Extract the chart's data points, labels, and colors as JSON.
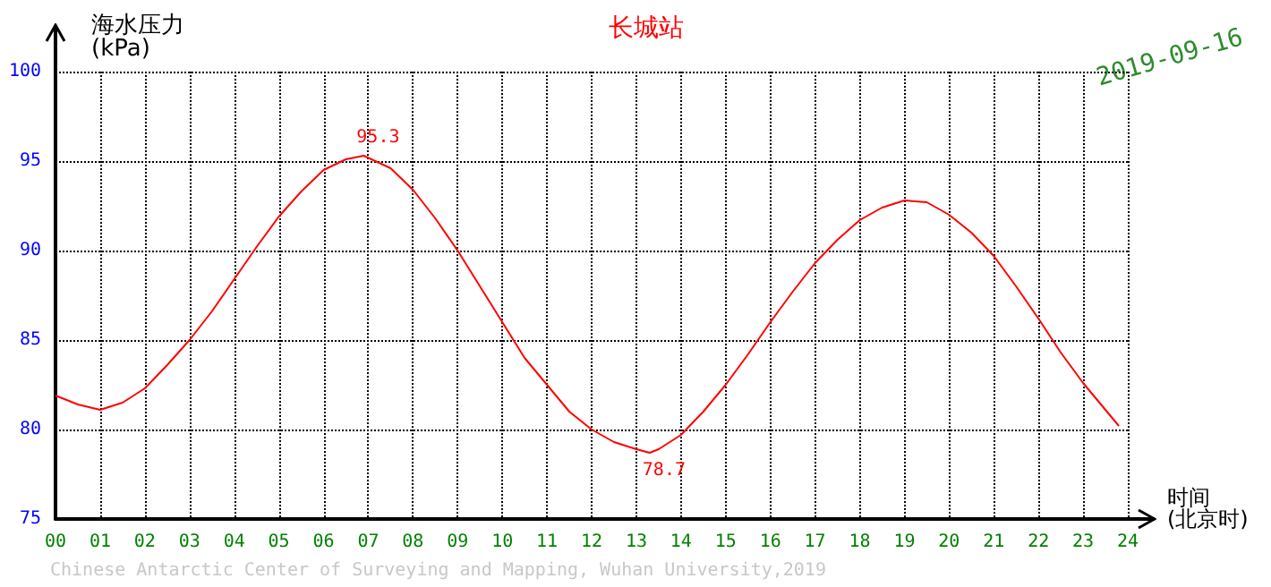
{
  "chart_data": {
    "type": "line",
    "title": "长城站",
    "ylabel": "海水压力\n(kPa)",
    "xlabel": "时间\n(北京时)",
    "annotations": [
      "2019-09-16",
      "Chinese Antarctic Center of Surveying and Mapping, Wuhan University,2019"
    ],
    "x": [
      0,
      0.5,
      1,
      1.5,
      2,
      2.5,
      3,
      3.5,
      4,
      4.5,
      5,
      5.5,
      6,
      6.5,
      6.9,
      7.5,
      8,
      8.5,
      9,
      9.5,
      10,
      10.5,
      11,
      11.5,
      12,
      12.5,
      13,
      13.3,
      13.5,
      14,
      14.5,
      15,
      15.5,
      16,
      16.5,
      17,
      17.5,
      18,
      18.5,
      19,
      19.5,
      20,
      20.5,
      21,
      21.5,
      22,
      22.5,
      23,
      23.5,
      23.8
    ],
    "series": [
      {
        "color": "#ff0000",
        "values": [
          81.9,
          81.4,
          81.1,
          81.5,
          82.3,
          83.6,
          85.0,
          86.6,
          88.4,
          90.2,
          91.9,
          93.3,
          94.5,
          95.1,
          95.3,
          94.6,
          93.4,
          91.8,
          90.0,
          88.0,
          86.0,
          84.0,
          82.5,
          81.0,
          80.0,
          79.3,
          78.9,
          78.7,
          78.9,
          79.7,
          81.0,
          82.5,
          84.2,
          86.0,
          87.7,
          89.3,
          90.6,
          91.7,
          92.4,
          92.8,
          92.7,
          92.0,
          91.0,
          89.7,
          88.0,
          86.2,
          84.3,
          82.6,
          81.1,
          80.2
        ],
        "value_labels": [
          null,
          null,
          null,
          null,
          null,
          null,
          null,
          null,
          null,
          null,
          null,
          null,
          null,
          null,
          "95.3",
          null,
          null,
          null,
          null,
          null,
          null,
          null,
          null,
          null,
          null,
          null,
          null,
          "78.7",
          null,
          null,
          null,
          null,
          null,
          null,
          null,
          null,
          null,
          null,
          null,
          null,
          null,
          null,
          null,
          null,
          null,
          null,
          null,
          null,
          null,
          null
        ]
      }
    ],
    "xlim": [
      0,
      24
    ],
    "xticks": [
      {
        "value": 0,
        "label": "00"
      },
      {
        "value": 1,
        "label": "01"
      },
      {
        "value": 2,
        "label": "02"
      },
      {
        "value": 3,
        "label": "03"
      },
      {
        "value": 4,
        "label": "04"
      },
      {
        "value": 5,
        "label": "05"
      },
      {
        "value": 6,
        "label": "06"
      },
      {
        "value": 7,
        "label": "07"
      },
      {
        "value": 8,
        "label": "08"
      },
      {
        "value": 9,
        "label": "09"
      },
      10,
      11,
      12,
      13,
      14,
      15,
      16,
      17,
      18,
      19,
      20,
      21,
      22,
      23,
      24
    ],
    "ylim": [
      75,
      100
    ],
    "yticks": [
      75,
      80,
      85,
      90,
      95,
      100
    ],
    "grid": true,
    "marker": "none",
    "line_style": "solid"
  }
}
